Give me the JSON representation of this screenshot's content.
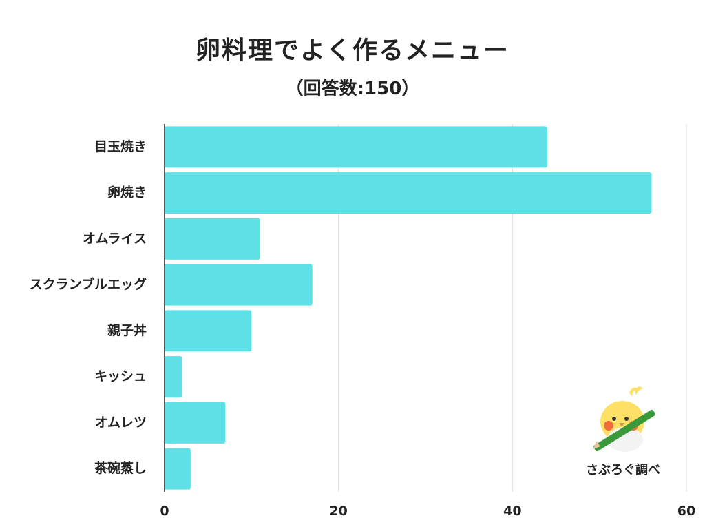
{
  "title": "卵料理でよく作るメニュー",
  "subtitle": "（回答数:150）",
  "credit": "さぶろぐ調べ",
  "colors": {
    "bar": "#5ee0e6",
    "grid": "#dddddd"
  },
  "chart_data": {
    "type": "bar",
    "orientation": "horizontal",
    "categories": [
      "目玉焼き",
      "卵焼き",
      "オムライス",
      "スクランブルエッグ",
      "親子丼",
      "キッシュ",
      "オムレツ",
      "茶碗蒸し"
    ],
    "values": [
      44,
      56,
      11,
      17,
      10,
      2,
      7,
      3
    ],
    "xlim": [
      0,
      60
    ],
    "xticks": [
      0,
      20,
      40,
      60
    ],
    "grid": true,
    "xlabel": "",
    "ylabel": ""
  }
}
